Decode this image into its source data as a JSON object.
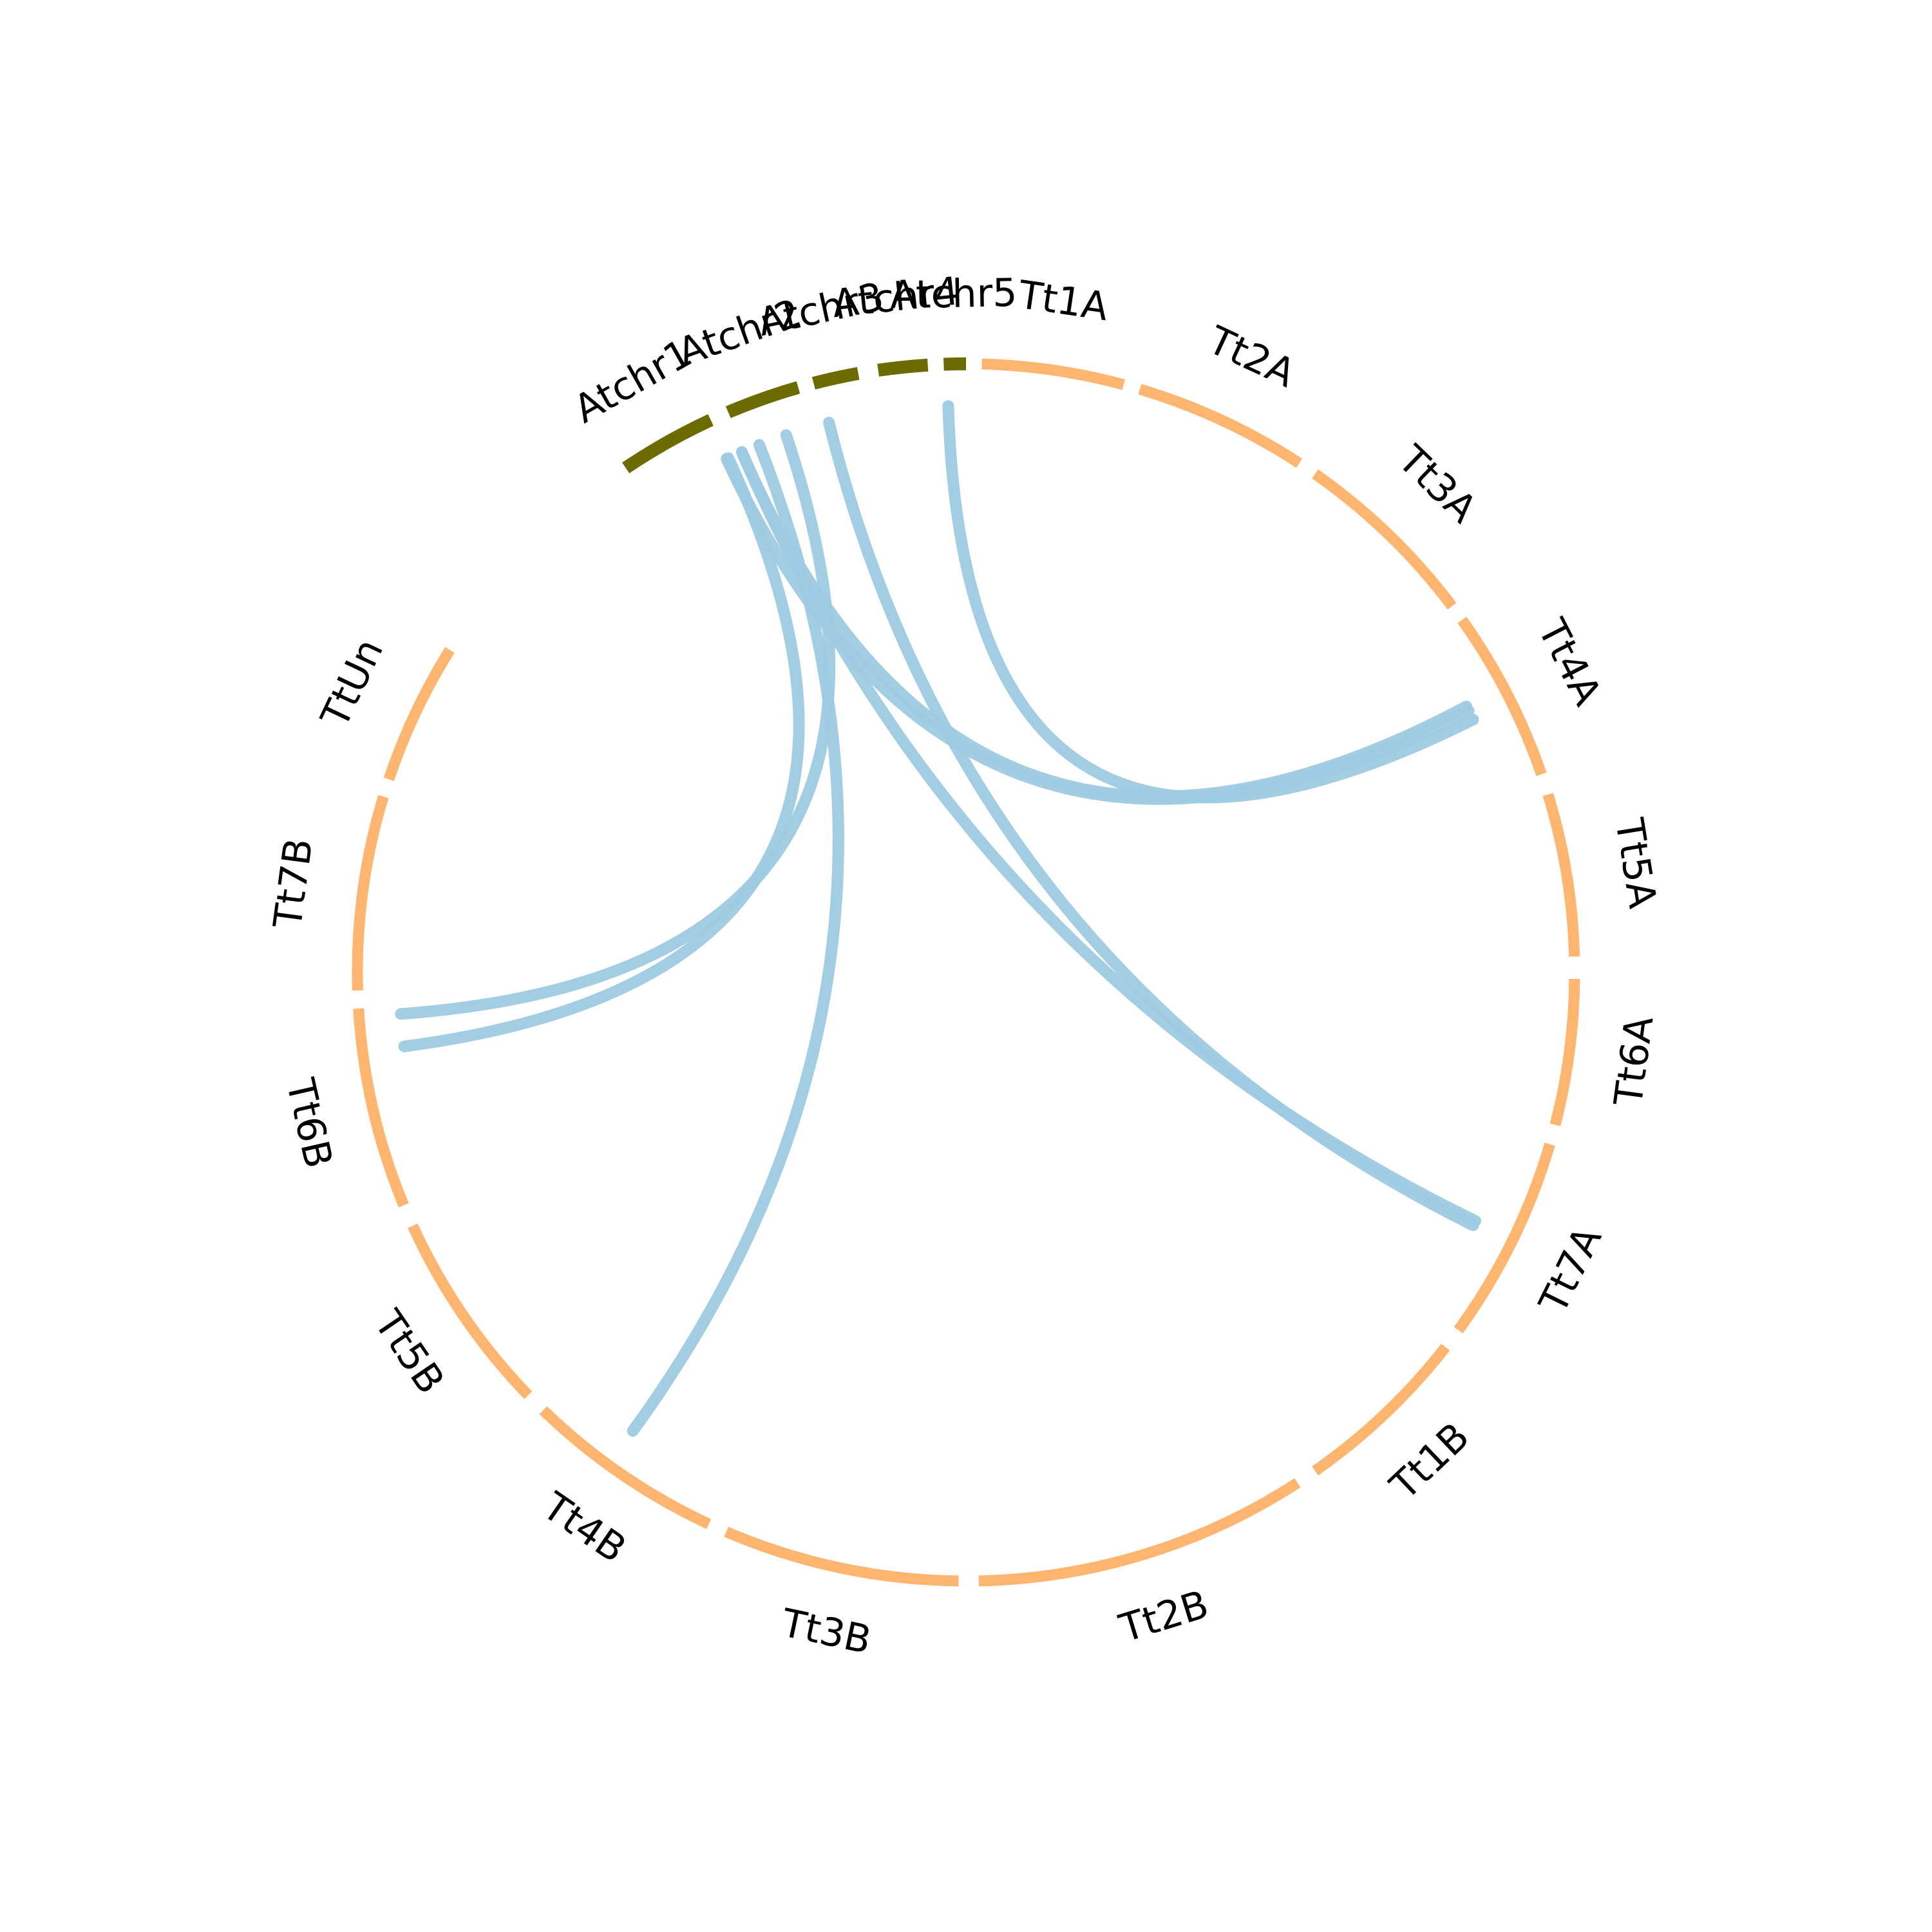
{
  "chart_data": {
    "type": "chord",
    "colors": {
      "arabidopsis": "#6b6b00",
      "triticum": "#fdb56f",
      "link": "#9ecae1",
      "label": "#000000"
    },
    "chromosomes": [
      {
        "id": "Atchr1",
        "label": "Atchr1",
        "group": "arabidopsis"
      },
      {
        "id": "Atchr2",
        "label": "Atchr2",
        "group": "arabidopsis"
      },
      {
        "id": "Atchr3",
        "label": "Atchr3",
        "group": "arabidopsis"
      },
      {
        "id": "Atchr4",
        "label": "Atchr4",
        "group": "arabidopsis"
      },
      {
        "id": "Atchr5",
        "label": "Atchr5",
        "group": "arabidopsis"
      },
      {
        "id": "Tt1A",
        "label": "Tt1A",
        "group": "triticum"
      },
      {
        "id": "Tt2A",
        "label": "Tt2A",
        "group": "triticum"
      },
      {
        "id": "Tt3A",
        "label": "Tt3A",
        "group": "triticum"
      },
      {
        "id": "Tt4A",
        "label": "Tt4A",
        "group": "triticum"
      },
      {
        "id": "Tt5A",
        "label": "Tt5A",
        "group": "triticum"
      },
      {
        "id": "Tt6A",
        "label": "Tt6A",
        "group": "triticum"
      },
      {
        "id": "Tt7A",
        "label": "Tt7A",
        "group": "triticum"
      },
      {
        "id": "Tt1B",
        "label": "Tt1B",
        "group": "triticum"
      },
      {
        "id": "Tt2B",
        "label": "Tt2B",
        "group": "triticum"
      },
      {
        "id": "Tt3B",
        "label": "Tt3B",
        "group": "triticum"
      },
      {
        "id": "Tt4B",
        "label": "Tt4B",
        "group": "triticum"
      },
      {
        "id": "Tt5B",
        "label": "Tt5B",
        "group": "triticum"
      },
      {
        "id": "Tt6B",
        "label": "Tt6B",
        "group": "triticum"
      },
      {
        "id": "Tt7B",
        "label": "Tt7B",
        "group": "triticum"
      },
      {
        "id": "TtUn",
        "label": "TtUn",
        "group": "triticum"
      }
    ],
    "links": [
      {
        "from": "Atchr5",
        "to": "Tt4A"
      },
      {
        "from": "Atchr4",
        "to": "Tt7A"
      },
      {
        "from": "Atchr3",
        "to": "Tt7B"
      },
      {
        "from": "Atchr2",
        "to": "Tt4A"
      },
      {
        "from": "Atchr2",
        "to": "Tt7A"
      },
      {
        "from": "Atchr2",
        "to": "Tt4B"
      },
      {
        "from": "Atchr1",
        "to": "Tt4A"
      },
      {
        "from": "Atchr1",
        "to": "Tt7B"
      }
    ]
  }
}
